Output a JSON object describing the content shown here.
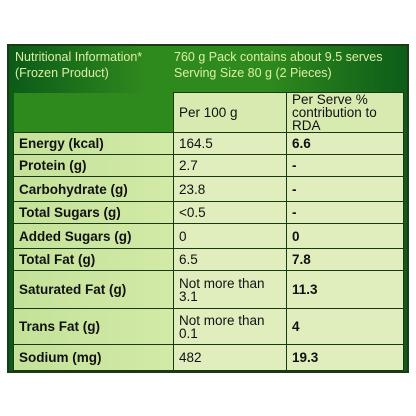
{
  "header": {
    "title_line1": "Nutritional Information*",
    "title_line2": "(Frozen Product)",
    "pack_line1": "760 g Pack contains about 9.5 serves",
    "pack_line2": "Serving Size  80 g (2 Pieces)"
  },
  "columns": {
    "per100_label": "Per 100 g",
    "perserve_line1": "Per Serve %",
    "perserve_line2": "contribution to RDA"
  },
  "rows": [
    {
      "label": "Energy (kcal)",
      "per100": "164.5",
      "rda": "6.6"
    },
    {
      "label": "Protein (g)",
      "per100": "2.7",
      "rda": "-"
    },
    {
      "label": "Carbohydrate (g)",
      "per100": "23.8",
      "rda": "-"
    },
    {
      "label": "Total Sugars (g)",
      "per100": "<0.5",
      "rda": "-"
    },
    {
      "label": "Added Sugars (g)",
      "per100": "0",
      "rda": "0"
    },
    {
      "label": "Total Fat (g)",
      "per100": "6.5",
      "rda": "7.8"
    },
    {
      "label": "Saturated Fat (g)",
      "per100_line1": "Not more than",
      "per100_line2": "3.1",
      "rda": "11.3"
    },
    {
      "label": "Trans Fat (g)",
      "per100_line1": "Not more than",
      "per100_line2": "0.1",
      "rda": "4"
    },
    {
      "label": "Sodium (mg)",
      "per100": "482",
      "rda": "19.3"
    }
  ],
  "colors": {
    "panel_green": "#2f8a1d",
    "cell_light": "#e0eebe",
    "header_text": "#dcefa6"
  }
}
